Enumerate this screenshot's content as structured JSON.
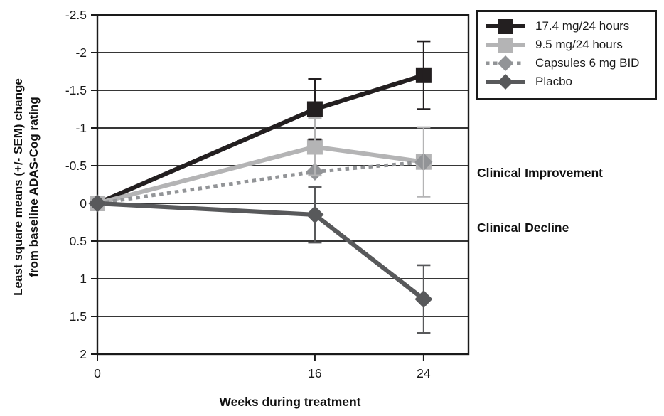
{
  "chart_data": {
    "type": "line",
    "title": "",
    "xlabel": "Weeks during treatment",
    "ylabel_lines": [
      "Least square means (+/- SEM) change",
      "from baseline ADAS-Cog rating"
    ],
    "x": [
      0,
      16,
      24
    ],
    "x_ticks": [
      "0",
      "16",
      "24"
    ],
    "y_ticks": [
      -2.5,
      -2,
      -1.5,
      -1,
      -0.5,
      0,
      0.5,
      1,
      1.5,
      2
    ],
    "ylim": [
      -2.5,
      2
    ],
    "xlim": [
      0,
      27.3
    ],
    "y_axis_inverted": true,
    "grid": true,
    "legend_position": "outside-top-right",
    "series": [
      {
        "name": "17.4 mg/24 hours",
        "color": "#231f20",
        "marker": "square",
        "line": "solid",
        "values": [
          0,
          -1.25,
          -1.7
        ],
        "sem": [
          null,
          0.4,
          0.45
        ]
      },
      {
        "name": "9.5 mg/24 hours",
        "color": "#b4b4b5",
        "marker": "square",
        "line": "solid",
        "values": [
          0,
          -0.75,
          -0.55
        ],
        "sem": [
          null,
          0.38,
          0.46
        ]
      },
      {
        "name": "Capsules 6 mg BID",
        "color": "#929497",
        "marker": "diamond",
        "line": "dashed",
        "values": [
          0,
          -0.42,
          -0.55
        ],
        "sem": [
          null,
          null,
          null
        ]
      },
      {
        "name": "Placbo",
        "color": "#58595b",
        "marker": "diamond",
        "line": "solid",
        "values": [
          0,
          0.15,
          1.27
        ],
        "sem": [
          null,
          0.37,
          0.45
        ]
      }
    ],
    "annotations": [
      "Clinical Improvement",
      "Clinical Decline"
    ],
    "axis_color": "#1a1a1a"
  }
}
